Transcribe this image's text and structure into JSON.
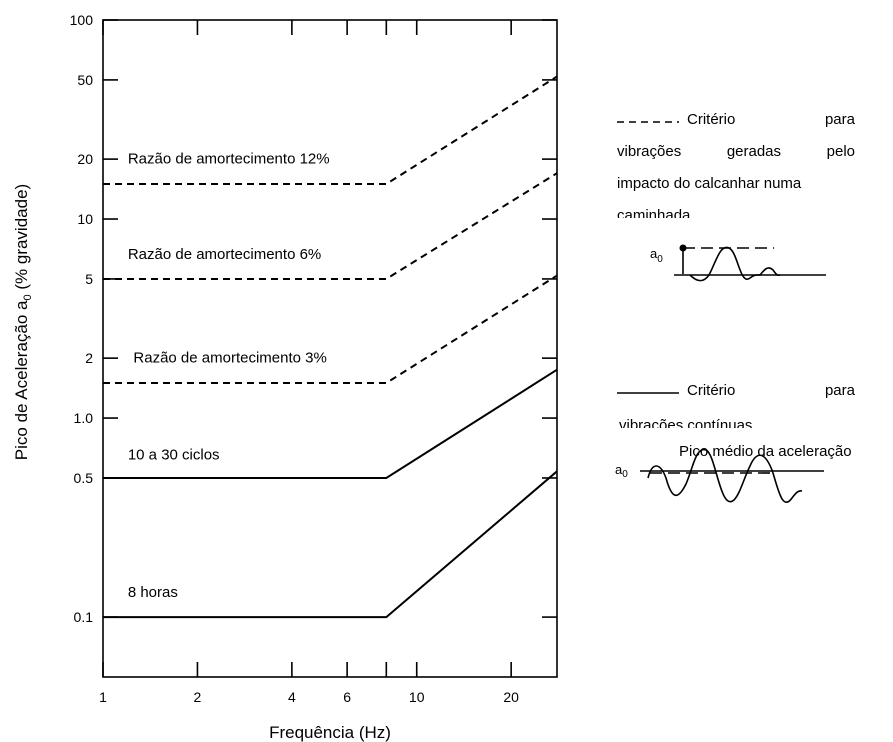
{
  "chart_data": {
    "type": "line",
    "xlabel": "Frequência (Hz)",
    "ylabel_main": "Pico de Aceleração a",
    "ylabel_sub": "0",
    "ylabel_tail": " (% gravidade)",
    "xscale": "log",
    "yscale": "log",
    "xlim": [
      1,
      28
    ],
    "ylim": [
      0.05,
      100
    ],
    "x_ticks": [
      {
        "value": 1,
        "label": "1"
      },
      {
        "value": 2,
        "label": "2"
      },
      {
        "value": 4,
        "label": "4"
      },
      {
        "value": 6,
        "label": "6"
      },
      {
        "value": 10,
        "label": "10"
      },
      {
        "value": 20,
        "label": "20"
      }
    ],
    "y_ticks": [
      {
        "value": 100,
        "label": "100"
      },
      {
        "value": 50,
        "label": "50"
      },
      {
        "value": 20,
        "label": "20"
      },
      {
        "value": 10,
        "label": "10"
      },
      {
        "value": 5,
        "label": "5"
      },
      {
        "value": 2,
        "label": "2"
      },
      {
        "value": 1,
        "label": "1.0"
      },
      {
        "value": 0.5,
        "label": "0.5"
      },
      {
        "value": 0.1,
        "label": "0.1"
      }
    ],
    "series": [
      {
        "name": "Razão de amortecimento 12%",
        "style": "dashed",
        "x": [
          1,
          8,
          28
        ],
        "y": [
          15,
          15,
          52
        ],
        "label_x": 1.2,
        "label_y": 19
      },
      {
        "name": "Razão de amortecimento 6%",
        "style": "dashed",
        "x": [
          1,
          8,
          28
        ],
        "y": [
          5,
          5,
          17
        ],
        "label_x": 1.2,
        "label_y": 6.3
      },
      {
        "name": "Razão de amortecimento 3%",
        "style": "dashed",
        "x": [
          1,
          8,
          28
        ],
        "y": [
          1.5,
          1.5,
          5.2
        ],
        "label_x": 1.25,
        "label_y": 1.9
      },
      {
        "name": "10 a 30 ciclos",
        "style": "solid",
        "x": [
          1,
          8,
          28
        ],
        "y": [
          0.5,
          0.5,
          1.75
        ],
        "label_x": 1.2,
        "label_y": 0.62
      },
      {
        "name": "8 horas",
        "style": "solid",
        "x": [
          1,
          8,
          28
        ],
        "y": [
          0.1,
          0.1,
          0.54
        ],
        "label_x": 1.2,
        "label_y": 0.126
      }
    ],
    "grid": false,
    "legend": {
      "dashed": {
        "lines": [
          "Critério",
          "para",
          "vibrações",
          "geradas",
          "pelo",
          "impacto do calcanhar numa",
          "caminhada"
        ],
        "a0": "a",
        "a0_sub": "0"
      },
      "solid": {
        "lines": [
          "Critério",
          "para",
          "vibrações contínuas"
        ],
        "caption": "Pico médio da aceleração",
        "a0": "a",
        "a0_sub": "0"
      }
    }
  }
}
